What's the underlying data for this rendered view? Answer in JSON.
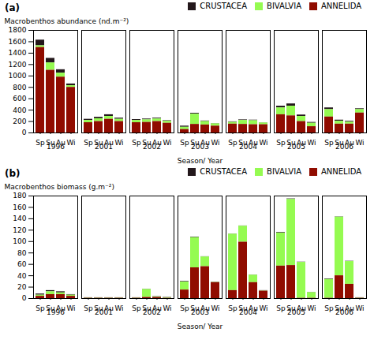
{
  "chart_data": [
    {
      "type": "bar",
      "stacked": true,
      "title": "(a)",
      "xlabel": "Season/ Year",
      "ylabel": "Macrobenthos abundance (nd.m⁻²)",
      "groups": [
        "1996",
        "2001",
        "2002",
        "2003",
        "2004",
        "2005",
        "2006"
      ],
      "categories": [
        "Sp",
        "Su",
        "Au",
        "Wi",
        "Sp",
        "Su",
        "Au",
        "Wi",
        "Sp",
        "Su",
        "Au",
        "Wi",
        "Sp",
        "Su",
        "Au",
        "Wi",
        "Sp",
        "Su",
        "Au",
        "Wi",
        "Sp",
        "Su",
        "Au",
        "Wi",
        "Sp",
        "Su",
        "Au",
        "Wi"
      ],
      "series": [
        {
          "name": "CRUSTACEA",
          "values": [
            100,
            80,
            60,
            30,
            20,
            25,
            30,
            20,
            15,
            15,
            15,
            10,
            20,
            15,
            10,
            5,
            10,
            10,
            10,
            5,
            30,
            40,
            25,
            15,
            30,
            20,
            15,
            15
          ]
        },
        {
          "name": "BIVALVIA",
          "values": [
            30,
            130,
            70,
            30,
            40,
            50,
            50,
            40,
            40,
            45,
            45,
            35,
            40,
            180,
            60,
            40,
            30,
            70,
            70,
            30,
            120,
            170,
            90,
            60,
            130,
            50,
            35,
            60
          ]
        },
        {
          "name": "ANNELIDA",
          "values": [
            1500,
            1100,
            980,
            800,
            180,
            200,
            240,
            200,
            180,
            185,
            200,
            170,
            60,
            150,
            140,
            120,
            155,
            150,
            145,
            145,
            320,
            300,
            200,
            110,
            280,
            155,
            155,
            350
          ]
        }
      ],
      "ylim": [
        0,
        1800
      ],
      "yticks": [
        0,
        200,
        400,
        600,
        800,
        1000,
        1200,
        1400,
        1600,
        1800
      ],
      "legend": "upper right",
      "grid": false
    },
    {
      "type": "bar",
      "stacked": true,
      "title": "(b)",
      "xlabel": "Season/ Year",
      "ylabel": "Macrobenthos biomass (g.m⁻²)",
      "groups": [
        "1996",
        "2001",
        "2002",
        "2003",
        "2004",
        "2005",
        "2006"
      ],
      "categories": [
        "Sp",
        "Su",
        "Au",
        "Wi",
        "Sp",
        "Su",
        "Au",
        "Wi",
        "Sp",
        "Su",
        "Au",
        "Wi",
        "Sp",
        "Su",
        "Au",
        "Wi",
        "Sp",
        "Su",
        "Au",
        "Wi",
        "Sp",
        "Su",
        "Au",
        "Wi",
        "Sp",
        "Su",
        "Au",
        "Wi"
      ],
      "series": [
        {
          "name": "CRUSTACEA",
          "values": [
            2,
            2,
            2,
            1,
            0.5,
            0.5,
            0.5,
            0.5,
            0.5,
            0.5,
            0.5,
            0.5,
            1,
            1,
            0.5,
            0.5,
            0.5,
            0.5,
            0.5,
            0.5,
            1,
            1,
            0.5,
            0.5,
            1,
            0.5,
            0.5,
            0.5
          ]
        },
        {
          "name": "BIVALVIA",
          "values": [
            2,
            5,
            3,
            2,
            0.5,
            0.5,
            0.5,
            0.5,
            0.5,
            14,
            1,
            1,
            14,
            53,
            17,
            0.5,
            99,
            28,
            13,
            0.5,
            58,
            116,
            63,
            10,
            33,
            103,
            40,
            0.5
          ]
        },
        {
          "name": "ANNELIDA",
          "values": [
            4,
            7,
            7,
            4,
            0.5,
            0.5,
            0.5,
            0.5,
            0.5,
            2,
            2,
            0.5,
            15,
            54,
            56,
            28,
            14,
            99,
            28,
            13,
            57,
            58,
            0.5,
            0.5,
            0.5,
            40,
            25,
            0.5
          ]
        }
      ],
      "ylim": [
        0,
        180
      ],
      "yticks": [
        0,
        20,
        40,
        60,
        80,
        100,
        120,
        140,
        160,
        180
      ],
      "legend": "upper right",
      "grid": false
    }
  ]
}
